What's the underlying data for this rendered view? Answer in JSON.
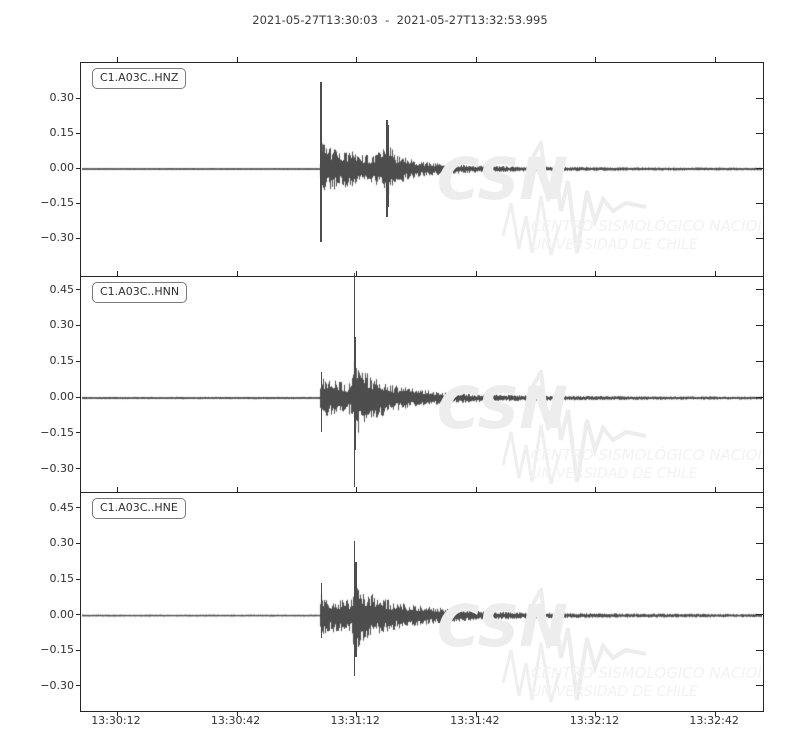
{
  "title": "2021-05-27T13:30:03  -  2021-05-27T13:32:53.995",
  "colors": {
    "trace": "#4d4d4d",
    "axis": "#262626",
    "tick_label": "#303030",
    "watermark_main": "#ededed",
    "watermark_text": "#f2f2f2"
  },
  "watermark": {
    "acronym": "CSN",
    "line1": "CENTRO SISMOLÓGICO NACIONAL",
    "line2": "UNIVERSIDAD DE CHILE"
  },
  "x_axis": {
    "start_time": "13:30:03",
    "end_time": "13:32:53.995",
    "duration_s": 171,
    "ticks": [
      {
        "t": 9,
        "label": "13:30:12"
      },
      {
        "t": 39,
        "label": "13:30:42"
      },
      {
        "t": 69,
        "label": "13:31:12"
      },
      {
        "t": 99,
        "label": "13:31:42"
      },
      {
        "t": 129,
        "label": "13:32:12"
      },
      {
        "t": 159,
        "label": "13:32:42"
      }
    ]
  },
  "chart_data": {
    "type": "line",
    "title": "2021-05-27T13:30:03  -  2021-05-27T13:32:53.995",
    "x_unit": "seconds since 13:30:03",
    "grid": false,
    "panels": [
      {
        "label": "C1.A03C..HNZ",
        "seed": 7,
        "ylim": [
          -0.467,
          0.45
        ],
        "yticks": [
          {
            "v": 0.3,
            "label": "0.30"
          },
          {
            "v": 0.15,
            "label": "0.15"
          },
          {
            "v": 0.0,
            "label": "0.00"
          },
          {
            "v": -0.15,
            "label": "−0.15"
          },
          {
            "v": -0.3,
            "label": "−0.30"
          }
        ],
        "envelope": [
          [
            0,
            0.004
          ],
          [
            59.7,
            0.004
          ],
          [
            60.0,
            0.06
          ],
          [
            60.4,
            0.13
          ],
          [
            61.5,
            0.09
          ],
          [
            63,
            0.095
          ],
          [
            64.5,
            0.075
          ],
          [
            66,
            0.08
          ],
          [
            68,
            0.075
          ],
          [
            70,
            0.065
          ],
          [
            73,
            0.06
          ],
          [
            75.5,
            0.09
          ],
          [
            76.6,
            0.155
          ],
          [
            77.6,
            0.1
          ],
          [
            79,
            0.065
          ],
          [
            82,
            0.045
          ],
          [
            86,
            0.032
          ],
          [
            92,
            0.022
          ],
          [
            100,
            0.015
          ],
          [
            115,
            0.01
          ],
          [
            140,
            0.007
          ],
          [
            171,
            0.006
          ]
        ],
        "spikes": [
          [
            60.05,
            0.37,
            -0.315
          ],
          [
            76.55,
            0.205,
            -0.21
          ],
          [
            76.95,
            0.185,
            -0.165
          ]
        ]
      },
      {
        "label": "C1.A03C..HNN",
        "seed": 13,
        "ylim": [
          -0.402,
          0.503
        ],
        "yticks": [
          {
            "v": 0.45,
            "label": "0.45"
          },
          {
            "v": 0.3,
            "label": "0.30"
          },
          {
            "v": 0.15,
            "label": "0.15"
          },
          {
            "v": 0.0,
            "label": "0.00"
          },
          {
            "v": -0.15,
            "label": "−0.15"
          },
          {
            "v": -0.3,
            "label": "−0.30"
          }
        ],
        "envelope": [
          [
            0,
            0.005
          ],
          [
            59.8,
            0.005
          ],
          [
            60.1,
            0.095
          ],
          [
            61,
            0.085
          ],
          [
            62.5,
            0.07
          ],
          [
            64,
            0.075
          ],
          [
            66,
            0.065
          ],
          [
            67.5,
            0.07
          ],
          [
            68.2,
            0.13
          ],
          [
            68.5,
            0.2
          ],
          [
            69.3,
            0.155
          ],
          [
            70.5,
            0.12
          ],
          [
            72,
            0.1
          ],
          [
            74,
            0.085
          ],
          [
            77,
            0.065
          ],
          [
            80,
            0.05
          ],
          [
            84,
            0.038
          ],
          [
            90,
            0.026
          ],
          [
            98,
            0.018
          ],
          [
            110,
            0.012
          ],
          [
            135,
            0.008
          ],
          [
            171,
            0.006
          ]
        ],
        "spikes": [
          [
            60.15,
            0.105,
            -0.145
          ],
          [
            68.35,
            0.52,
            -0.375
          ],
          [
            68.65,
            0.25,
            -0.22
          ]
        ]
      },
      {
        "label": "C1.A03C..HNE",
        "seed": 21,
        "ylim": [
          -0.407,
          0.513
        ],
        "yticks": [
          {
            "v": 0.45,
            "label": "0.45"
          },
          {
            "v": 0.3,
            "label": "0.30"
          },
          {
            "v": 0.15,
            "label": "0.15"
          },
          {
            "v": 0.0,
            "label": "0.00"
          },
          {
            "v": -0.15,
            "label": "−0.15"
          },
          {
            "v": -0.3,
            "label": "−0.30"
          }
        ],
        "envelope": [
          [
            0,
            0.004
          ],
          [
            59.8,
            0.004
          ],
          [
            60.05,
            0.1
          ],
          [
            60.5,
            0.08
          ],
          [
            62,
            0.075
          ],
          [
            64,
            0.07
          ],
          [
            66,
            0.065
          ],
          [
            67.8,
            0.075
          ],
          [
            68.3,
            0.14
          ],
          [
            68.8,
            0.175
          ],
          [
            69.8,
            0.13
          ],
          [
            71,
            0.105
          ],
          [
            73,
            0.09
          ],
          [
            75.5,
            0.075
          ],
          [
            78.5,
            0.06
          ],
          [
            82,
            0.05
          ],
          [
            86,
            0.04
          ],
          [
            92,
            0.03
          ],
          [
            100,
            0.02
          ],
          [
            112,
            0.013
          ],
          [
            135,
            0.009
          ],
          [
            171,
            0.007
          ]
        ],
        "spikes": [
          [
            60.1,
            0.135,
            -0.1
          ],
          [
            68.4,
            0.31,
            -0.26
          ],
          [
            68.75,
            0.22,
            -0.18
          ]
        ]
      }
    ]
  }
}
